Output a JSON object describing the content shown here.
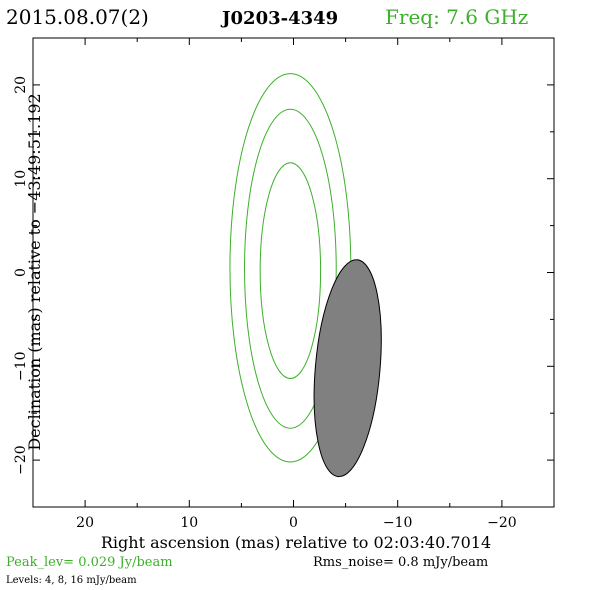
{
  "header": {
    "date": "2015.08.07(2)",
    "source": "J0203-4349",
    "freq": "Freq: 7.6 GHz"
  },
  "footer": {
    "peak": "Peak_lev=  0.029 Jy/beam",
    "rms": "Rms_noise=  0.8 mJy/beam",
    "levels": "Levels:   4,   8,  16 mJy/beam"
  },
  "colors": {
    "contour": "#3cb02a",
    "beam_fill": "#808080",
    "axis": "#000000",
    "green_text": "#3cb02a"
  },
  "chart_data": {
    "type": "contour",
    "xlabel": "Right ascension (mas) relative to 02:03:40.7014",
    "ylabel": "Declination (mas) relative to −43:49:51.192",
    "xlim": [
      25,
      -25
    ],
    "ylim": [
      -25,
      25
    ],
    "xticks": [
      20,
      10,
      0,
      -10,
      -20
    ],
    "yticks": [
      20,
      10,
      0,
      -10,
      -20
    ],
    "xtick_labels": [
      "20",
      "10",
      "0",
      "−10",
      "−20"
    ],
    "ytick_labels": [
      "20",
      "10",
      "0",
      "−10",
      "−20"
    ],
    "contour_levels_mJy": [
      4,
      8,
      16
    ],
    "contours": [
      {
        "level": 4,
        "center": [
          0.3,
          0.5
        ],
        "semi_x": 5.8,
        "semi_y": 20.7
      },
      {
        "level": 8,
        "center": [
          0.3,
          0.4
        ],
        "semi_x": 4.4,
        "semi_y": 17.0
      },
      {
        "level": 16,
        "center": [
          0.3,
          0.2
        ],
        "semi_x": 2.9,
        "semi_y": 11.5
      }
    ],
    "beam": {
      "center": [
        -5.2,
        -10.2
      ],
      "semi_major": 11.6,
      "semi_minor": 3.1,
      "pa_deg": 5,
      "color": "#808080"
    }
  }
}
